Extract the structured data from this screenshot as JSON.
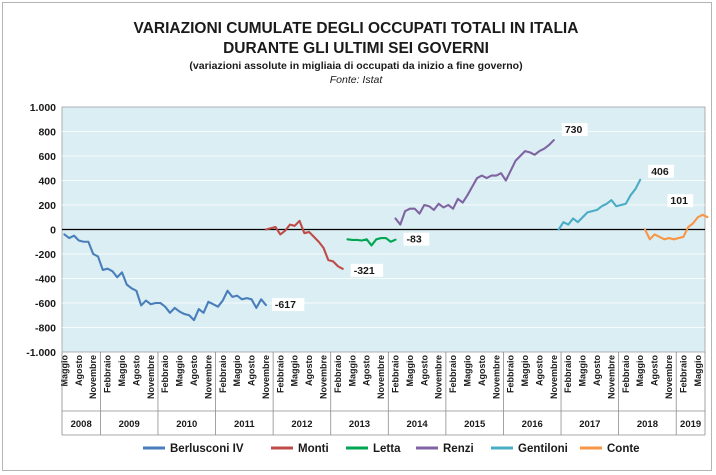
{
  "chart_data": {
    "type": "line",
    "title_line1": "VARIAZIONI CUMULATE DEGLI OCCUPATI TOTALI IN ITALIA",
    "title_line2": "DURANTE GLI ULTIMI SEI GOVERNI",
    "subtitle": "(variazioni assolute in migliaia di occupati da inizio a fine governo)",
    "source": "Fonte: Istat",
    "ylim": [
      -1000,
      1000
    ],
    "yticks": [
      1000,
      800,
      600,
      400,
      200,
      0,
      -200,
      -400,
      -600,
      -800,
      -1000
    ],
    "ytick_labels": [
      "1.000",
      "800",
      "600",
      "400",
      "200",
      "0",
      "-200",
      "-400",
      "-600",
      "-800",
      "-1.000"
    ],
    "x_start": {
      "year": 2008,
      "month": 5
    },
    "x_end": {
      "year": 2019,
      "month": 6
    },
    "month_tick_labels": [
      "Febbraio",
      "Maggio",
      "Agosto",
      "Novembre"
    ],
    "year_labels": [
      "2008",
      "2009",
      "2010",
      "2011",
      "2012",
      "2013",
      "2014",
      "2015",
      "2016",
      "2017",
      "2018",
      "2019"
    ],
    "series": [
      {
        "name": "Berlusconi IV",
        "color": "#4A7EBB",
        "start": "2008-05",
        "end_label": "-617",
        "values": [
          -40,
          -70,
          -50,
          -90,
          -100,
          -100,
          -200,
          -220,
          -330,
          -320,
          -340,
          -390,
          -350,
          -450,
          -480,
          -500,
          -620,
          -580,
          -610,
          -600,
          -600,
          -630,
          -680,
          -640,
          -670,
          -690,
          -700,
          -740,
          -650,
          -680,
          -590,
          -610,
          -630,
          -580,
          -500,
          -550,
          -540,
          -570,
          -560,
          -570,
          -640,
          -570,
          -617
        ]
      },
      {
        "name": "Monti",
        "color": "#BE4B48",
        "start": "2011-11",
        "end_label": "-321",
        "values": [
          0,
          10,
          20,
          -40,
          -10,
          40,
          30,
          70,
          -30,
          -20,
          -60,
          -100,
          -150,
          -250,
          -260,
          -300,
          -321
        ]
      },
      {
        "name": "Letta",
        "color": "#00A651",
        "start": "2013-04",
        "end_label": "-83",
        "values": [
          -80,
          -85,
          -85,
          -90,
          -80,
          -130,
          -80,
          -70,
          -70,
          -100,
          -83
        ]
      },
      {
        "name": "Renzi",
        "color": "#8064A2",
        "start": "2014-02",
        "end_label": "730",
        "values": [
          90,
          40,
          150,
          170,
          170,
          130,
          200,
          190,
          160,
          210,
          180,
          200,
          170,
          250,
          220,
          280,
          350,
          420,
          440,
          420,
          440,
          440,
          460,
          400,
          480,
          560,
          600,
          640,
          630,
          610,
          640,
          660,
          690,
          730
        ]
      },
      {
        "name": "Gentiloni",
        "color": "#4BACC6",
        "start": "2016-12",
        "end_label": "406",
        "values": [
          0,
          60,
          40,
          90,
          60,
          100,
          140,
          150,
          160,
          190,
          210,
          240,
          190,
          200,
          210,
          280,
          330,
          406
        ]
      },
      {
        "name": "Conte",
        "color": "#F79646",
        "start": "2018-06",
        "end_label": "101",
        "values": [
          0,
          -80,
          -40,
          -60,
          -80,
          -70,
          -80,
          -70,
          -60,
          20,
          50,
          100,
          120,
          101
        ]
      }
    ]
  }
}
